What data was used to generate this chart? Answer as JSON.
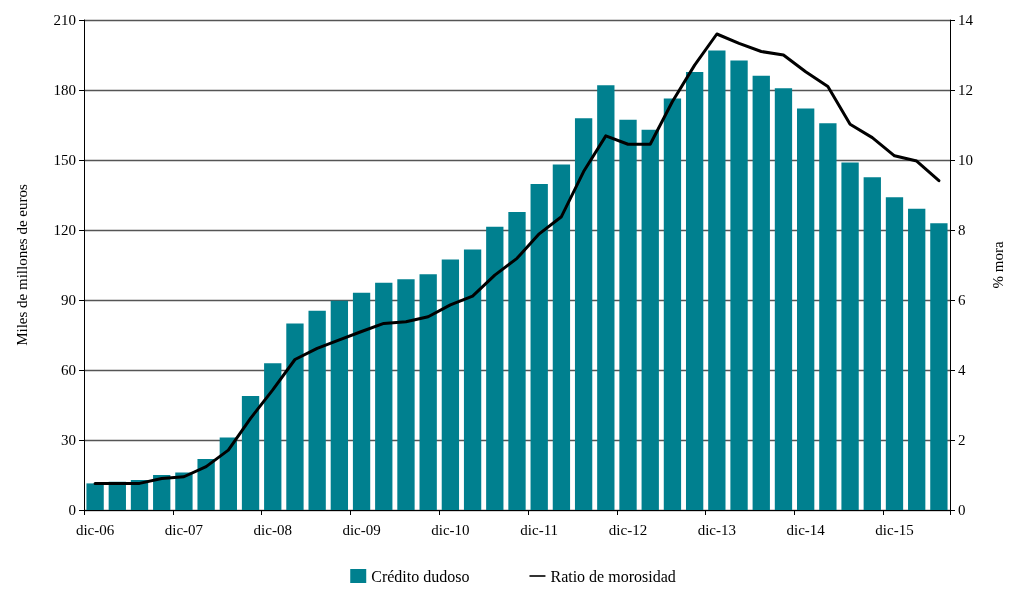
{
  "chart_data": {
    "type": "bar",
    "ylabel": "Miles de millones de euros",
    "y2label": "% mora",
    "categories": [
      "dic-06",
      null,
      null,
      null,
      "dic-07",
      null,
      null,
      null,
      "dic-08",
      null,
      null,
      null,
      "dic-09",
      null,
      null,
      null,
      "dic-10",
      null,
      null,
      null,
      "dic-11",
      null,
      null,
      null,
      "dic-12",
      null,
      null,
      null,
      "dic-13",
      null,
      null,
      null,
      "dic-14",
      null,
      null,
      null,
      "dic-15",
      null,
      null
    ],
    "series": [
      {
        "name": "Crédito dudoso",
        "color": "#00808f",
        "values": [
          11.4,
          12.1,
          12.9,
          15,
          16.1,
          21.9,
          31.1,
          48.9,
          62.9,
          79.9,
          85.4,
          89.7,
          93.1,
          97.4,
          98.9,
          101,
          107.4,
          111.6,
          121.4,
          127.7,
          139.7,
          148.1,
          167.9,
          182,
          167.3,
          163,
          176.4,
          187.7,
          196.9,
          192.6,
          186.1,
          180.7,
          172.1,
          165.7,
          148.9,
          142.6,
          134,
          129.1,
          122.9
        ]
      },
      {
        "name": "Ratio de morosidad",
        "type": "line",
        "axis": "y2",
        "color": "#000000",
        "values": [
          0.76,
          0.76,
          0.76,
          0.9,
          0.95,
          1.24,
          1.71,
          2.62,
          3.43,
          4.3,
          4.62,
          4.86,
          5.1,
          5.33,
          5.38,
          5.52,
          5.86,
          6.11,
          6.71,
          7.19,
          7.89,
          8.38,
          9.67,
          10.69,
          10.45,
          10.45,
          11.67,
          12.71,
          13.6,
          13.33,
          13.1,
          13.0,
          12.52,
          12.1,
          11.02,
          10.64,
          10.12,
          9.97,
          9.41
        ]
      }
    ],
    "ylim": [
      0,
      210
    ],
    "yticks": [
      0,
      30,
      60,
      90,
      120,
      150,
      180,
      210
    ],
    "y2lim": [
      0,
      14
    ],
    "y2ticks": [
      0,
      2,
      4,
      6,
      8,
      10,
      12,
      14
    ],
    "grid": "y",
    "legend": "bottom",
    "marker": "none",
    "line_style": "solid"
  }
}
